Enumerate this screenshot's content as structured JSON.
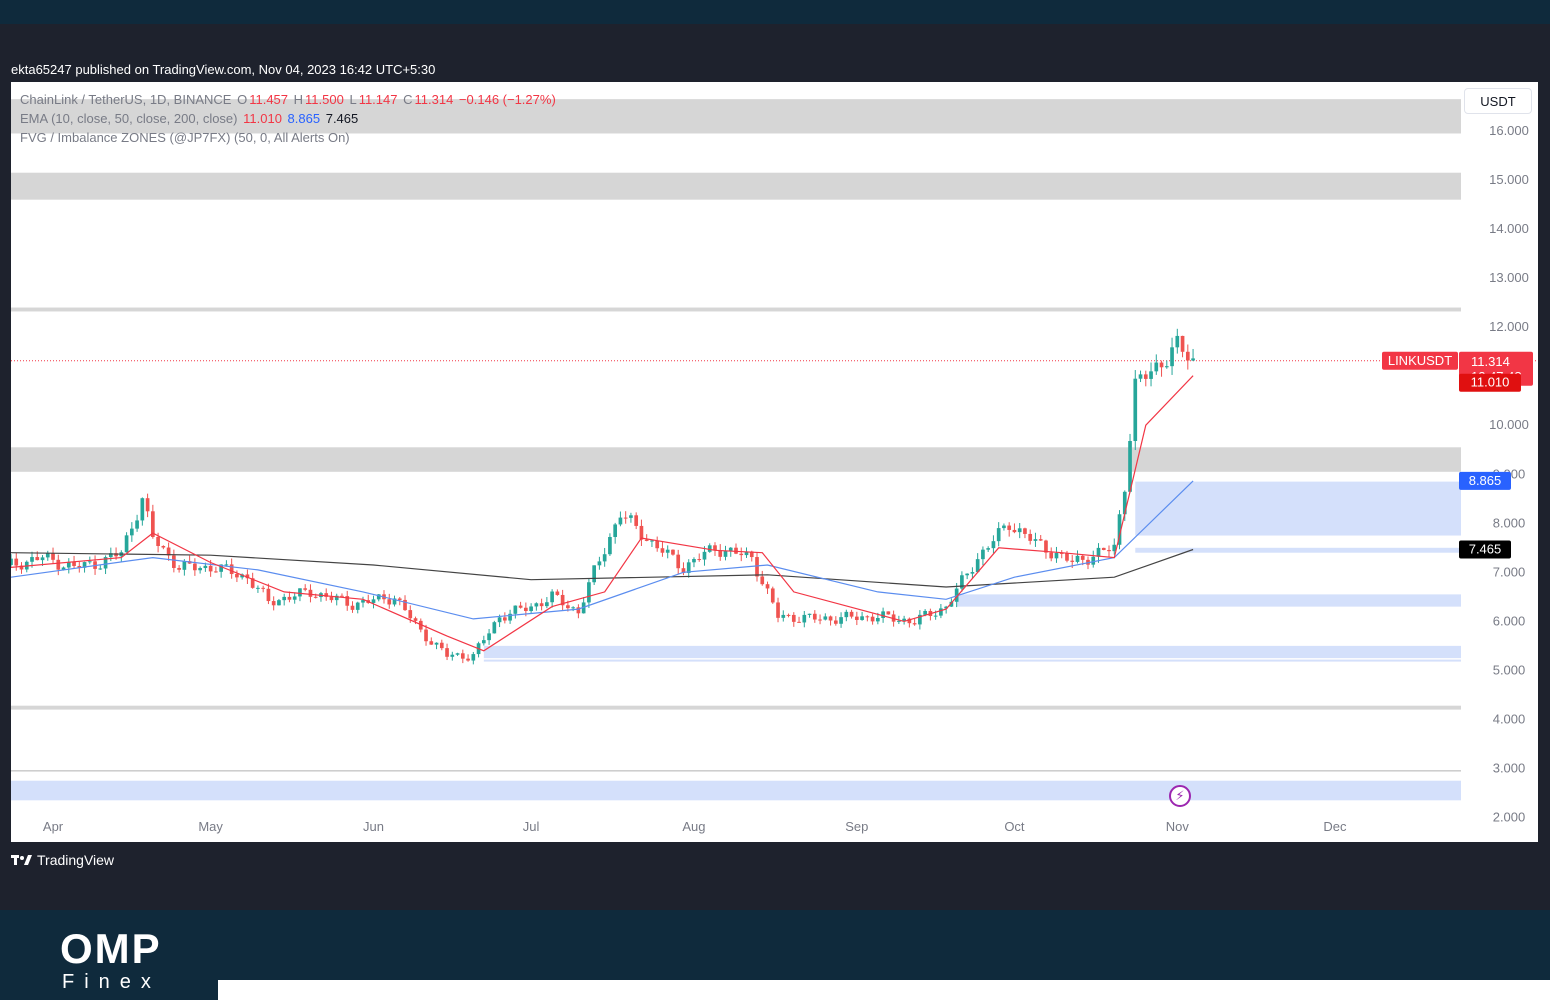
{
  "header": {
    "published": "ekta65247 published on TradingView.com, Nov 04, 2023 16:42 UTC+5:30"
  },
  "legend": {
    "symbol": "ChainLink / TetherUS, 1D, BINANCE",
    "o_label": "O",
    "o_value": "11.457",
    "h_label": "H",
    "h_value": "11.500",
    "l_label": "L",
    "l_value": "11.147",
    "c_label": "C",
    "c_value": "11.314",
    "change": "−0.146 (−1.27%)",
    "ema_label": "EMA (10, close, 50, close, 200, close)",
    "ema10": "11.010",
    "ema50": "8.865",
    "ema200": "7.465",
    "fvg_label": "FVG / Imbalance ZONES (@JP7FX) (50, 0, All Alerts On)"
  },
  "currency": "USDT",
  "badges": {
    "symbol": "LINKUSDT",
    "price": "11.314",
    "countdown": "12:47:48",
    "ema10": "11.010",
    "ema50": "8.865",
    "ema200": "7.465"
  },
  "colors": {
    "up": "#26a69a",
    "down": "#ef5350",
    "ema10": "#f23645",
    "ema50": "#5b8def",
    "ema200": "#444444",
    "zone_gray": "#d6d6d6",
    "zone_blue": "#d4e0fb"
  },
  "brand": {
    "tradingview": "TradingView",
    "omp": "OMP",
    "finex": "Finex"
  },
  "icons": {
    "tv_logo": "tradingview-logo-icon",
    "event": "lightning-icon"
  },
  "chart_data": {
    "type": "candlestick",
    "y_ticks": [
      "2.000",
      "3.000",
      "4.000",
      "5.000",
      "6.000",
      "7.000",
      "8.000",
      "9.000",
      "10.000",
      "11.000",
      "12.000",
      "13.000",
      "14.000",
      "15.000",
      "16.000"
    ],
    "ylim": [
      1.5,
      17.0
    ],
    "x_ticks": [
      "Apr",
      "May",
      "Jun",
      "Jul",
      "Aug",
      "Sep",
      "Oct",
      "Nov",
      "Dec"
    ],
    "xlim": [
      "2023-03-24",
      "2023-12-25"
    ],
    "grid": false,
    "zones_gray": [
      [
        15.95,
        16.65
      ],
      [
        14.6,
        15.15
      ],
      [
        12.32,
        12.4
      ],
      [
        4.2,
        4.28
      ],
      [
        9.05,
        9.55
      ]
    ],
    "zones_blue": [
      [
        7.75,
        8.85
      ],
      [
        7.4,
        7.5
      ],
      [
        6.3,
        6.55
      ],
      [
        5.25,
        5.5
      ],
      [
        2.35,
        2.75
      ],
      [
        5.18,
        5.22
      ]
    ],
    "lines": [
      {
        "name": "EMA 10",
        "value": 11.01
      },
      {
        "name": "EMA 50",
        "value": 8.865
      },
      {
        "name": "EMA 200",
        "value": 7.465
      }
    ],
    "price_line": 11.314,
    "anchors": [
      [
        "2023-03-24",
        7.15
      ],
      [
        "2023-03-30",
        7.3
      ],
      [
        "2023-04-05",
        7.1
      ],
      [
        "2023-04-10",
        7.2
      ],
      [
        "2023-04-14",
        7.4
      ],
      [
        "2023-04-18",
        8.5
      ],
      [
        "2023-04-20",
        7.7
      ],
      [
        "2023-04-25",
        7.1
      ],
      [
        "2023-05-02",
        7.1
      ],
      [
        "2023-05-08",
        6.9
      ],
      [
        "2023-05-12",
        6.4
      ],
      [
        "2023-05-20",
        6.6
      ],
      [
        "2023-05-28",
        6.35
      ],
      [
        "2023-06-05",
        6.5
      ],
      [
        "2023-06-10",
        5.8
      ],
      [
        "2023-06-15",
        5.3
      ],
      [
        "2023-06-20",
        5.3
      ],
      [
        "2023-06-25",
        6.1
      ],
      [
        "2023-07-01",
        6.3
      ],
      [
        "2023-07-05",
        6.5
      ],
      [
        "2023-07-10",
        6.2
      ],
      [
        "2023-07-13",
        7.0
      ],
      [
        "2023-07-18",
        8.2
      ],
      [
        "2023-07-24",
        7.6
      ],
      [
        "2023-07-30",
        7.1
      ],
      [
        "2023-08-05",
        7.5
      ],
      [
        "2023-08-12",
        7.3
      ],
      [
        "2023-08-17",
        6.1
      ],
      [
        "2023-08-25",
        6.05
      ],
      [
        "2023-09-05",
        6.1
      ],
      [
        "2023-09-12",
        6.0
      ],
      [
        "2023-09-18",
        6.3
      ],
      [
        "2023-09-24",
        7.3
      ],
      [
        "2023-09-30",
        8.0
      ],
      [
        "2023-10-05",
        7.6
      ],
      [
        "2023-10-12",
        7.2
      ],
      [
        "2023-10-20",
        7.5
      ],
      [
        "2023-10-22",
        8.8
      ],
      [
        "2023-10-24",
        10.8
      ],
      [
        "2023-10-28",
        11.2
      ],
      [
        "2023-11-01",
        11.6
      ],
      [
        "2023-11-04",
        11.314
      ]
    ],
    "ema10": [
      [
        "2023-03-24",
        7.1
      ],
      [
        "2023-04-14",
        7.3
      ],
      [
        "2023-04-20",
        7.8
      ],
      [
        "2023-05-01",
        7.2
      ],
      [
        "2023-05-15",
        6.6
      ],
      [
        "2023-05-30",
        6.45
      ],
      [
        "2023-06-15",
        5.7
      ],
      [
        "2023-06-22",
        5.4
      ],
      [
        "2023-07-05",
        6.3
      ],
      [
        "2023-07-15",
        6.6
      ],
      [
        "2023-07-22",
        7.7
      ],
      [
        "2023-08-05",
        7.45
      ],
      [
        "2023-08-14",
        7.4
      ],
      [
        "2023-08-20",
        6.6
      ],
      [
        "2023-09-10",
        6.0
      ],
      [
        "2023-09-18",
        6.25
      ],
      [
        "2023-09-28",
        7.5
      ],
      [
        "2023-10-10",
        7.4
      ],
      [
        "2023-10-20",
        7.3
      ],
      [
        "2023-10-26",
        10.0
      ],
      [
        "2023-11-04",
        11.01
      ]
    ],
    "ema50": [
      [
        "2023-03-24",
        6.9
      ],
      [
        "2023-04-20",
        7.3
      ],
      [
        "2023-05-10",
        7.05
      ],
      [
        "2023-05-30",
        6.6
      ],
      [
        "2023-06-20",
        6.05
      ],
      [
        "2023-07-10",
        6.25
      ],
      [
        "2023-07-30",
        7.0
      ],
      [
        "2023-08-15",
        7.15
      ],
      [
        "2023-09-05",
        6.6
      ],
      [
        "2023-09-18",
        6.45
      ],
      [
        "2023-10-01",
        6.9
      ],
      [
        "2023-10-20",
        7.3
      ],
      [
        "2023-11-04",
        8.865
      ]
    ],
    "ema200": [
      [
        "2023-03-24",
        7.4
      ],
      [
        "2023-05-01",
        7.35
      ],
      [
        "2023-06-01",
        7.15
      ],
      [
        "2023-07-01",
        6.85
      ],
      [
        "2023-08-15",
        6.95
      ],
      [
        "2023-09-18",
        6.7
      ],
      [
        "2023-10-20",
        6.9
      ],
      [
        "2023-11-04",
        7.465
      ]
    ]
  }
}
